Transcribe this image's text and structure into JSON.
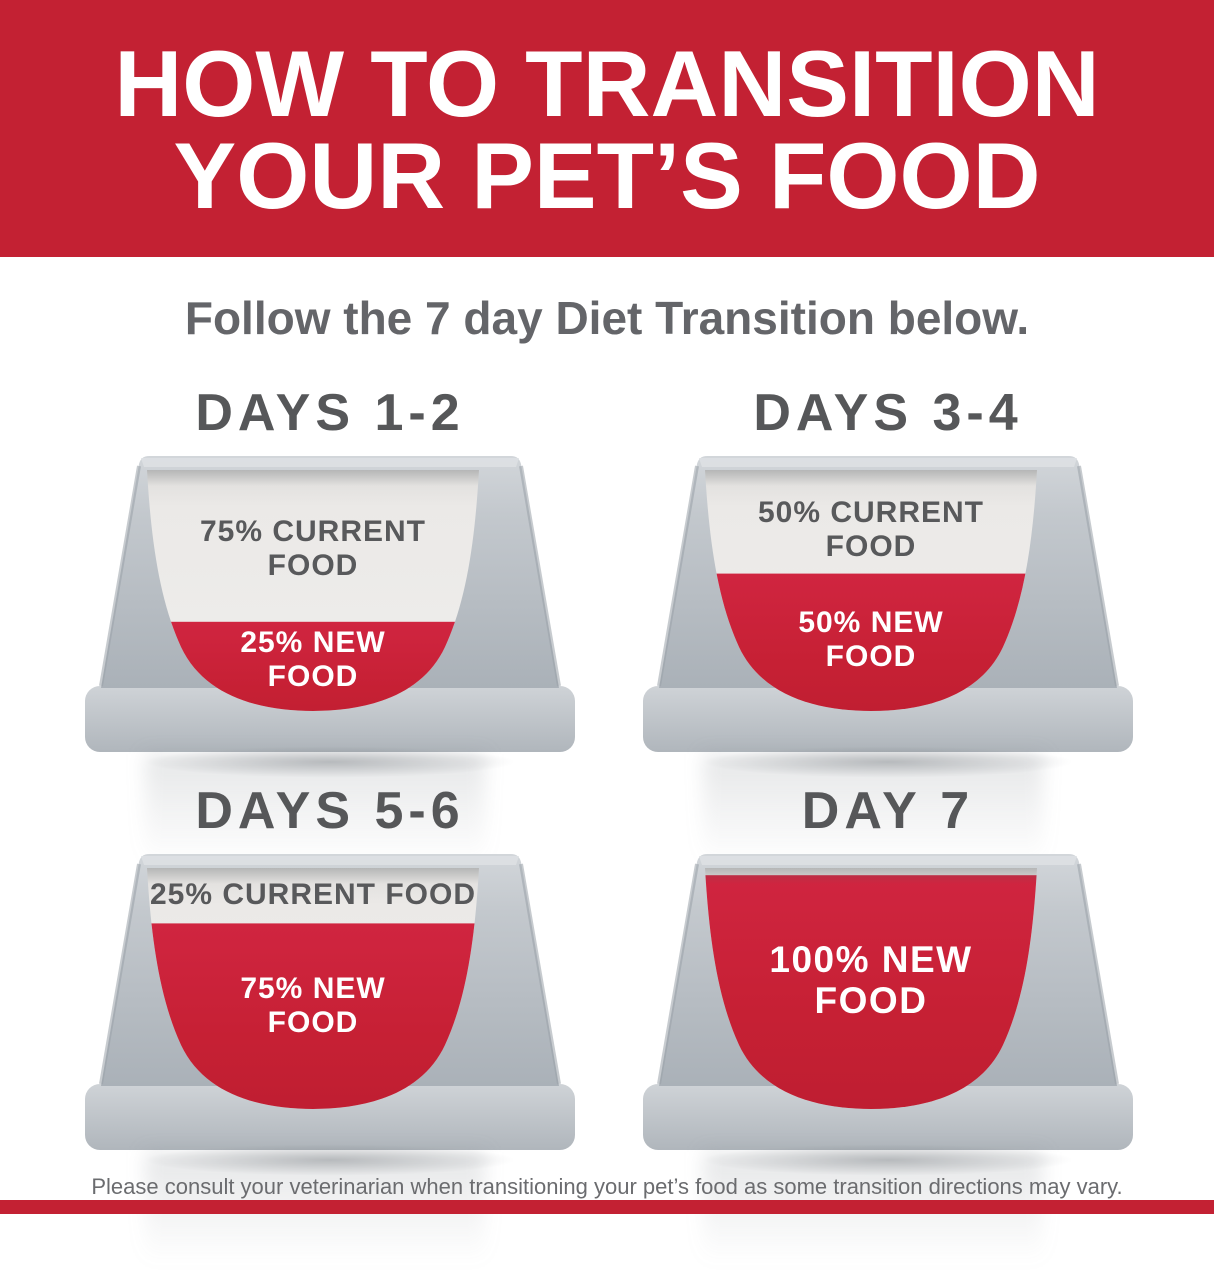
{
  "page": {
    "title_line1": "HOW TO TRANSITION",
    "title_line2": "YOUR PET’S FOOD",
    "subtitle": "Follow the 7 day Diet Transition below.",
    "footer_note": "Please consult your veterinarian when transitioning your pet’s food as some transition directions may vary."
  },
  "colors": {
    "header_red": "#c32133",
    "bowl_red": "#c62034",
    "bowl_gray": "#b7bdc2",
    "label_gray": "#58595b"
  },
  "bowls": [
    {
      "day_label": "DAYS 1-2",
      "current_pct": 75,
      "new_pct": 25,
      "current_line1": "75% CURRENT",
      "current_line2": "FOOD",
      "new_line1": "25% NEW",
      "new_line2": "FOOD"
    },
    {
      "day_label": "DAYS 3-4",
      "current_pct": 50,
      "new_pct": 50,
      "current_line1": "50% CURRENT",
      "current_line2": "FOOD",
      "new_line1": "50% NEW",
      "new_line2": "FOOD"
    },
    {
      "day_label": "DAYS 5-6",
      "current_pct": 25,
      "new_pct": 75,
      "current_line1": "25% CURRENT FOOD",
      "new_line1": "75% NEW",
      "new_line2": "FOOD"
    },
    {
      "day_label": "DAY 7",
      "current_pct": 0,
      "new_pct": 100,
      "new_line1": "100% NEW",
      "new_line2": "FOOD"
    }
  ]
}
